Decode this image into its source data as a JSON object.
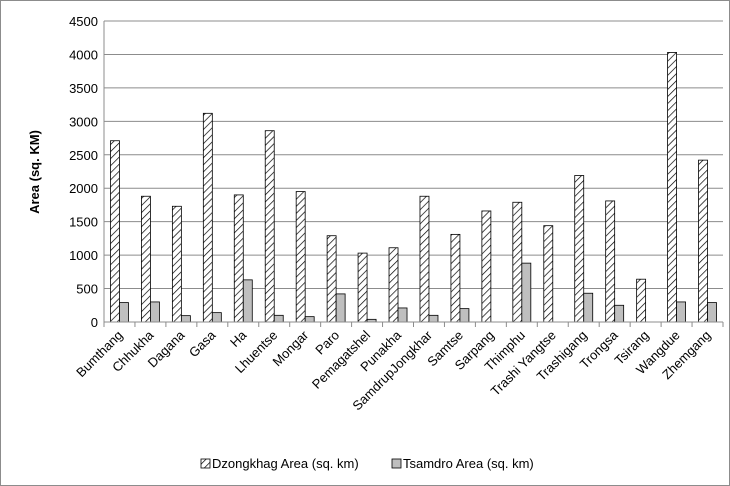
{
  "chart_data": {
    "type": "bar",
    "title": "",
    "xlabel": "",
    "ylabel": "Area (sq. KM)",
    "ylim": [
      0,
      4500
    ],
    "yticks": [
      0,
      500,
      1000,
      1500,
      2000,
      2500,
      3000,
      3500,
      4000,
      4500
    ],
    "grid": true,
    "legend_position": "bottom",
    "categories": [
      "Bumthang",
      "Chhukha",
      "Dagana",
      "Gasa",
      "Ha",
      "Lhuentse",
      "Mongar",
      "Paro",
      "Pemagatshel",
      "Punakha",
      "SamdrupJongkhar",
      "Samtse",
      "Sarpang",
      "Thimphu",
      "Trashi Yangtse",
      "Trashigang",
      "Trongsa",
      "Tsirang",
      "Wangdue",
      "Zhemgang"
    ],
    "series": [
      {
        "name": "Dzongkhag Area (sq. km)",
        "fill": "hatch",
        "color": "#000000",
        "values": [
          2710,
          1880,
          1730,
          3120,
          1900,
          2860,
          1950,
          1290,
          1030,
          1110,
          1880,
          1310,
          1660,
          1790,
          1440,
          2190,
          1810,
          640,
          4030,
          2420
        ]
      },
      {
        "name": "Tsamdro Area (sq. km)",
        "fill": "solid",
        "color": "#bfbfbf",
        "values": [
          290,
          300,
          95,
          140,
          630,
          100,
          80,
          420,
          40,
          210,
          100,
          200,
          0,
          880,
          0,
          430,
          250,
          0,
          300,
          290
        ]
      }
    ]
  }
}
